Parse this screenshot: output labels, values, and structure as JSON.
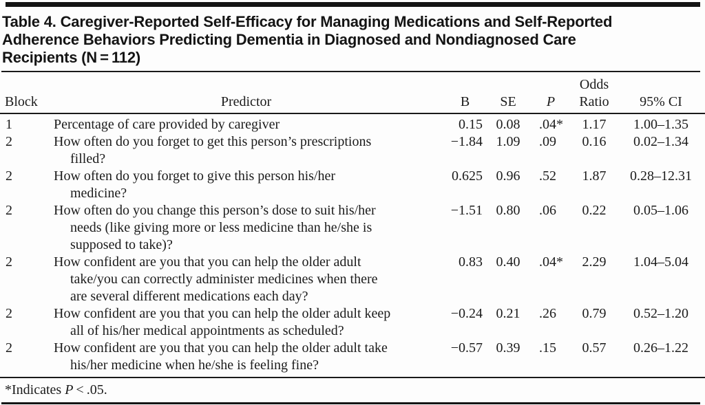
{
  "table": {
    "title_lines": [
      "Table 4. Caregiver-Reported Self-Efficacy for Managing Medications and Self-Reported",
      "Adherence Behaviors Predicting Dementia in Diagnosed and Nondiagnosed Care",
      "Recipients (N = 112)"
    ],
    "headers": {
      "block": "Block",
      "predictor": "Predictor",
      "b": "B",
      "se": "SE",
      "p": "P",
      "odds_line1": "Odds",
      "odds_line2": "Ratio",
      "ci": "95% CI"
    },
    "rows": [
      {
        "block": "1",
        "predictor_lines": [
          "Percentage of care provided by caregiver"
        ],
        "b": "0.15",
        "se": "0.08",
        "p": ".04*",
        "odds": "1.17",
        "ci": "1.00–1.35"
      },
      {
        "block": "2",
        "predictor_lines": [
          "How often do you forget to get this person’s prescriptions",
          "filled?"
        ],
        "b": "−1.84",
        "se": "1.09",
        "p": ".09",
        "odds": "0.16",
        "ci": "0.02–1.34"
      },
      {
        "block": "2",
        "predictor_lines": [
          "How often do you forget to give this person his/her",
          "medicine?"
        ],
        "b": "0.625",
        "se": "0.96",
        "p": ".52",
        "odds": "1.87",
        "ci": "0.28–12.31"
      },
      {
        "block": "2",
        "predictor_lines": [
          "How often do you change this person’s dose to suit his/her",
          "needs (like giving more or less medicine than he/she is",
          "supposed to take)?"
        ],
        "b": "−1.51",
        "se": "0.80",
        "p": ".06",
        "odds": "0.22",
        "ci": "0.05–1.06"
      },
      {
        "block": "2",
        "predictor_lines": [
          "How confident are you that you can help the older adult",
          "take/you can correctly administer medicines when there",
          "are several different medications each day?"
        ],
        "b": "0.83",
        "se": "0.40",
        "p": ".04*",
        "odds": "2.29",
        "ci": "1.04–5.04"
      },
      {
        "block": "2",
        "predictor_lines": [
          "How confident are you that you can help the older adult keep",
          "all of his/her medical appointments as scheduled?"
        ],
        "b": "−0.24",
        "se": "0.21",
        "p": ".26",
        "odds": "0.79",
        "ci": "0.52–1.20"
      },
      {
        "block": "2",
        "predictor_lines": [
          "How confident are you that you can help the older adult take",
          "his/her medicine when he/she is feeling fine?"
        ],
        "b": "−0.57",
        "se": "0.39",
        "p": ".15",
        "odds": "0.57",
        "ci": "0.26–1.22"
      }
    ],
    "footnote": {
      "prefix": "*Indicates ",
      "p_symbol": "P",
      "suffix": " < .05."
    }
  },
  "colors": {
    "background": "#fdfdfd",
    "text": "#1b1b1b",
    "rule": "#141414"
  }
}
